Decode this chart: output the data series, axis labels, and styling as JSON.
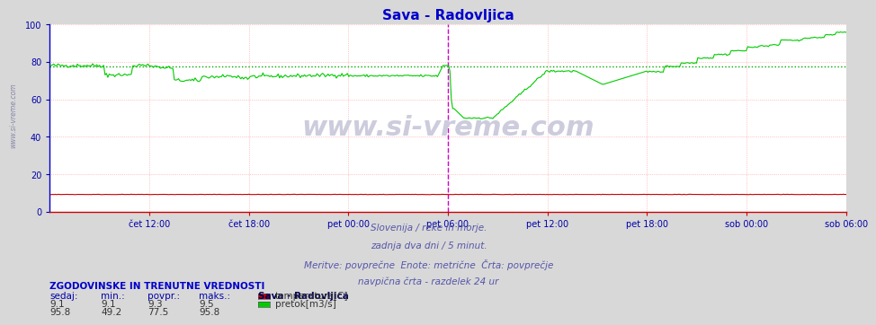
{
  "title": "Sava - Radovljica",
  "title_color": "#0000cc",
  "bg_color": "#d8d8d8",
  "plot_bg_color": "#ffffff",
  "grid_color_major": "#ff9999",
  "xlabel_color": "#0000aa",
  "text_below": [
    "Slovenija / reke in morje.",
    "zadnja dva dni / 5 minut.",
    "Meritve: povprečne  Enote: metrične  Črta: povprečje",
    "navpična črta - razdelek 24 ur"
  ],
  "text_below_color": "#5555aa",
  "table_header": "ZGODOVINSKE IN TRENUTNE VREDNOSTI",
  "table_header_color": "#0000cc",
  "table_cols": [
    "sedaj:",
    "min.:",
    "povpr.:",
    "maks.:"
  ],
  "table_col_color": "#0000aa",
  "station_label": "Sava - Radovljica",
  "station_label_color": "#000055",
  "legend_items": [
    {
      "label": "temperatura[C]",
      "color": "#cc0000"
    },
    {
      "label": "pretok[m3/s]",
      "color": "#00cc00"
    }
  ],
  "row1": [
    9.1,
    9.1,
    9.3,
    9.5
  ],
  "row2": [
    95.8,
    49.2,
    77.5,
    95.8
  ],
  "ylim": [
    0,
    100
  ],
  "yticks": [
    0,
    20,
    40,
    60,
    80,
    100
  ],
  "x_tick_labels": [
    "čet 12:00",
    "čet 18:00",
    "pet 00:00",
    "pet 06:00",
    "pet 12:00",
    "pet 18:00",
    "sob 00:00",
    "sob 06:00"
  ],
  "vline_color": "#cc00cc",
  "avg_line_color": "#00aa00",
  "avg_line_value": 77.5,
  "watermark": "www.si-vreme.com",
  "watermark_color": "#ccccdd",
  "left_label": "www.si-vreme.com",
  "left_label_color": "#8888aa"
}
